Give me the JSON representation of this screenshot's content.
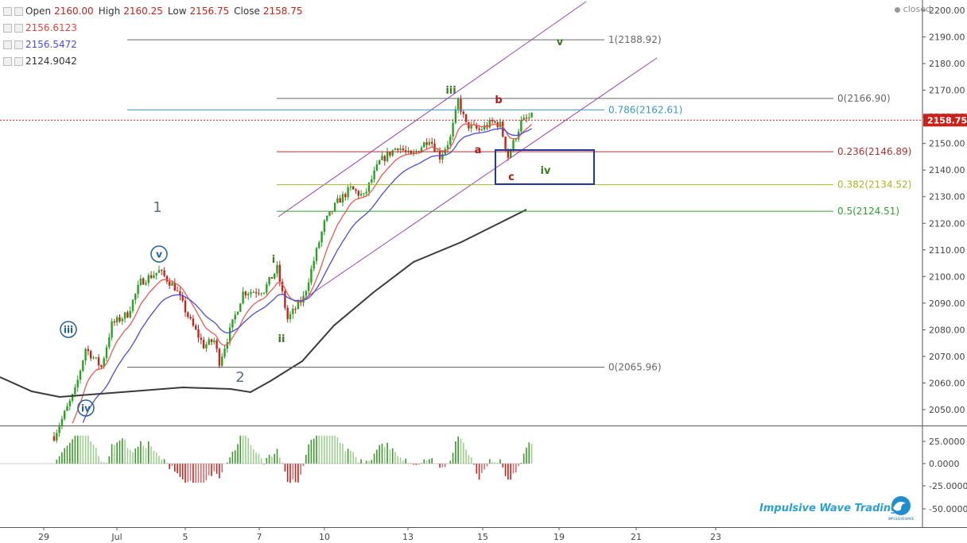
{
  "ohlc": {
    "open_label": "Open",
    "open": "2160.00",
    "high_label": "High",
    "high": "2160.25",
    "low_label": "Low",
    "low": "2156.75",
    "close_label": "Close",
    "close": "2158.75"
  },
  "indicators": [
    {
      "value": "2156.6123",
      "color": "#e8413a"
    },
    {
      "value": "2156.5472",
      "color": "#4a4ae8"
    },
    {
      "value": "2124.9042",
      "color": "#333333"
    }
  ],
  "status": "closed",
  "brand": {
    "name": "Impulsive Wave Trading",
    "logo_text": "IMPULSIVEWAVE"
  },
  "colors": {
    "up": "#26a31f",
    "down": "#c8221a",
    "ema_fast": "#ee5a50",
    "ema_mid": "#4b4be0",
    "sma_slow": "#3a3a3a",
    "channel": "#9b3fb5"
  },
  "chart_data": {
    "type": "candlestick",
    "price_axis": {
      "min": 2045,
      "max": 2200,
      "ticks": [
        "2200.00",
        "2190.00",
        "2180.00",
        "2170.00",
        "2160.00",
        "2150.00",
        "2140.00",
        "2130.00",
        "2120.00",
        "2110.00",
        "2100.00",
        "2090.00",
        "2080.00",
        "2070.00",
        "2060.00",
        "2050.00"
      ],
      "last_price": "2158.75"
    },
    "oscillator_axis": {
      "ticks": [
        "25.0000",
        "0.0000",
        "-25.0000",
        "-50.0000"
      ]
    },
    "x_ticks": [
      "29",
      "Jul",
      "5",
      "7",
      "10",
      "13",
      "15",
      "19",
      "21",
      "23"
    ],
    "price_path": [
      [
        0,
        2040
      ],
      [
        8,
        2057
      ],
      [
        12,
        2073
      ],
      [
        18,
        2066
      ],
      [
        22,
        2082
      ],
      [
        28,
        2086
      ],
      [
        33,
        2098
      ],
      [
        40,
        2102
      ],
      [
        46,
        2096
      ],
      [
        52,
        2083
      ],
      [
        57,
        2074
      ],
      [
        61,
        2076
      ],
      [
        63,
        2068
      ],
      [
        72,
        2094
      ],
      [
        80,
        2095
      ],
      [
        85,
        2103
      ],
      [
        89,
        2084
      ],
      [
        95,
        2092
      ],
      [
        103,
        2120
      ],
      [
        108,
        2128
      ],
      [
        113,
        2133
      ],
      [
        118,
        2130
      ],
      [
        124,
        2143
      ],
      [
        131,
        2149
      ],
      [
        136,
        2145
      ],
      [
        143,
        2152
      ],
      [
        147,
        2145
      ],
      [
        151,
        2152
      ],
      [
        154,
        2166
      ],
      [
        157,
        2157
      ],
      [
        162,
        2155
      ],
      [
        167,
        2158
      ],
      [
        170,
        2157
      ],
      [
        173,
        2145
      ],
      [
        178,
        2158
      ],
      [
        182,
        2160
      ]
    ],
    "fib_levels": [
      {
        "label": "1(2188.92)",
        "price": 2188.92,
        "color": "#666666"
      },
      {
        "label": "0(2166.90)",
        "price": 2166.9,
        "color": "#666666"
      },
      {
        "label": "0.786(2162.61)",
        "price": 2162.61,
        "color": "#3a98c8"
      },
      {
        "label": "0.236(2146.89)",
        "price": 2146.89,
        "color": "#b03030"
      },
      {
        "label": "0.382(2134.52)",
        "price": 2134.52,
        "color": "#a8b820"
      },
      {
        "label": "0.5(2124.51)",
        "price": 2124.51,
        "color": "#30a030"
      },
      {
        "label": "0(2065.96)",
        "price": 2065.96,
        "color": "#666666"
      }
    ],
    "wave_labels": [
      {
        "text": "1",
        "price": 2128,
        "bar": 48,
        "color": "#5a6e8a",
        "size": "big"
      },
      {
        "text": "2",
        "price": 2062,
        "bar": 72,
        "color": "#5a6e8a",
        "size": "big"
      },
      {
        "text": "v",
        "price": 2105,
        "bar": 48,
        "color": "#2060a0",
        "circle": true
      },
      {
        "text": "iii",
        "price": 2080,
        "bar": 18,
        "color": "#2060a0",
        "circle": true
      },
      {
        "text": "iv",
        "price": 2052,
        "bar": 24,
        "color": "#2060a0",
        "circle": true
      },
      {
        "text": "i",
        "price": 2111,
        "bar": 83,
        "color": "#3a7a1e"
      },
      {
        "text": "ii",
        "price": 2077,
        "bar": 86,
        "color": "#3a7a1e"
      },
      {
        "text": "iii",
        "price": 2171,
        "bar": 143,
        "color": "#3a7a1e"
      },
      {
        "text": "iv",
        "price": 2141,
        "bar": 177,
        "color": "#3a7a1e"
      },
      {
        "text": "v",
        "price": 2189,
        "bar": 182,
        "color": "#3a7a1e"
      },
      {
        "text": "a",
        "price": 2150,
        "bar": 155,
        "color": "#b01818"
      },
      {
        "text": "b",
        "price": 2168,
        "bar": 160,
        "color": "#b01818"
      },
      {
        "text": "c",
        "price": 2139,
        "bar": 164,
        "color": "#b01818"
      }
    ]
  }
}
